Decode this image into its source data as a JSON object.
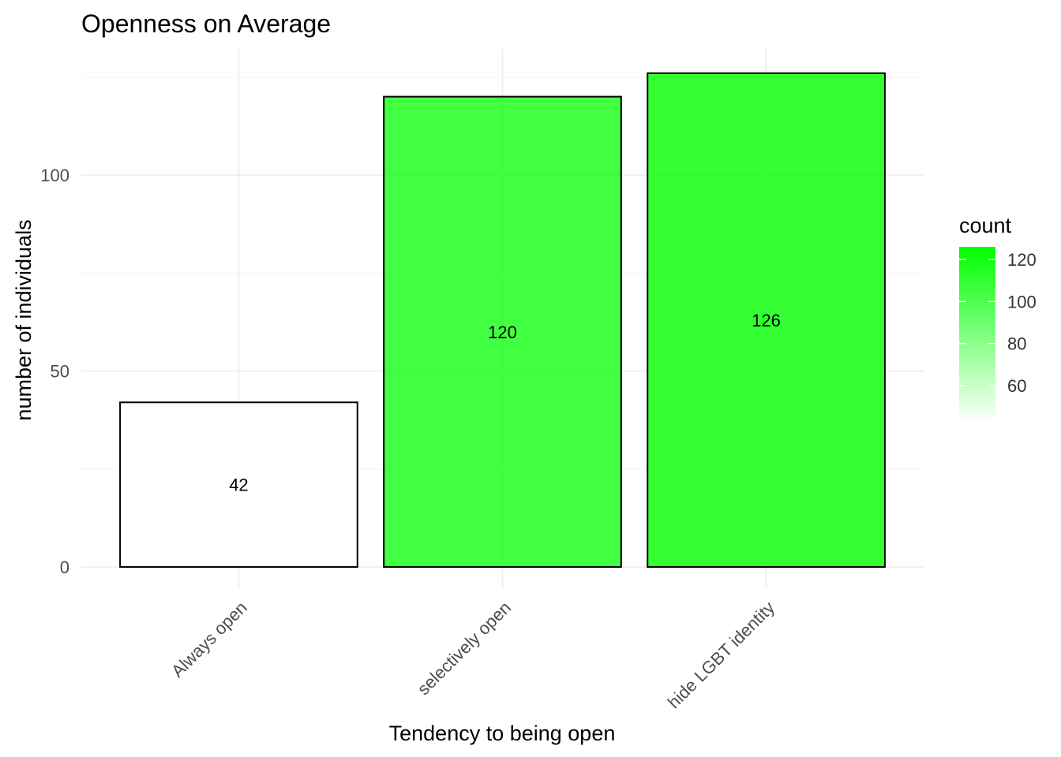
{
  "chart_data": {
    "type": "bar",
    "title": "Openness on Average",
    "xlabel": "Tendency to being open",
    "ylabel": "number of individuals",
    "categories": [
      "Always open",
      "selectively open",
      "hide LGBT identity"
    ],
    "values": [
      42,
      120,
      126
    ],
    "bar_labels": [
      "42",
      "120",
      "126"
    ],
    "y_ticks": [
      0,
      50,
      100
    ],
    "y_tick_labels": [
      "0",
      "50",
      "100"
    ],
    "ylim": [
      0,
      126
    ],
    "grid": true,
    "x_tick_rotation_deg": 45,
    "legend": {
      "title": "count",
      "placement": "right",
      "type": "gradient",
      "range": [
        42,
        126
      ],
      "ticks": [
        60,
        80,
        100,
        120
      ],
      "tick_labels": [
        "60",
        "80",
        "100",
        "120"
      ],
      "low_color": "#ffffff",
      "high_color": "#00ff00"
    },
    "bar_outline_color": "#000000",
    "bar_alpha": 0.8
  }
}
